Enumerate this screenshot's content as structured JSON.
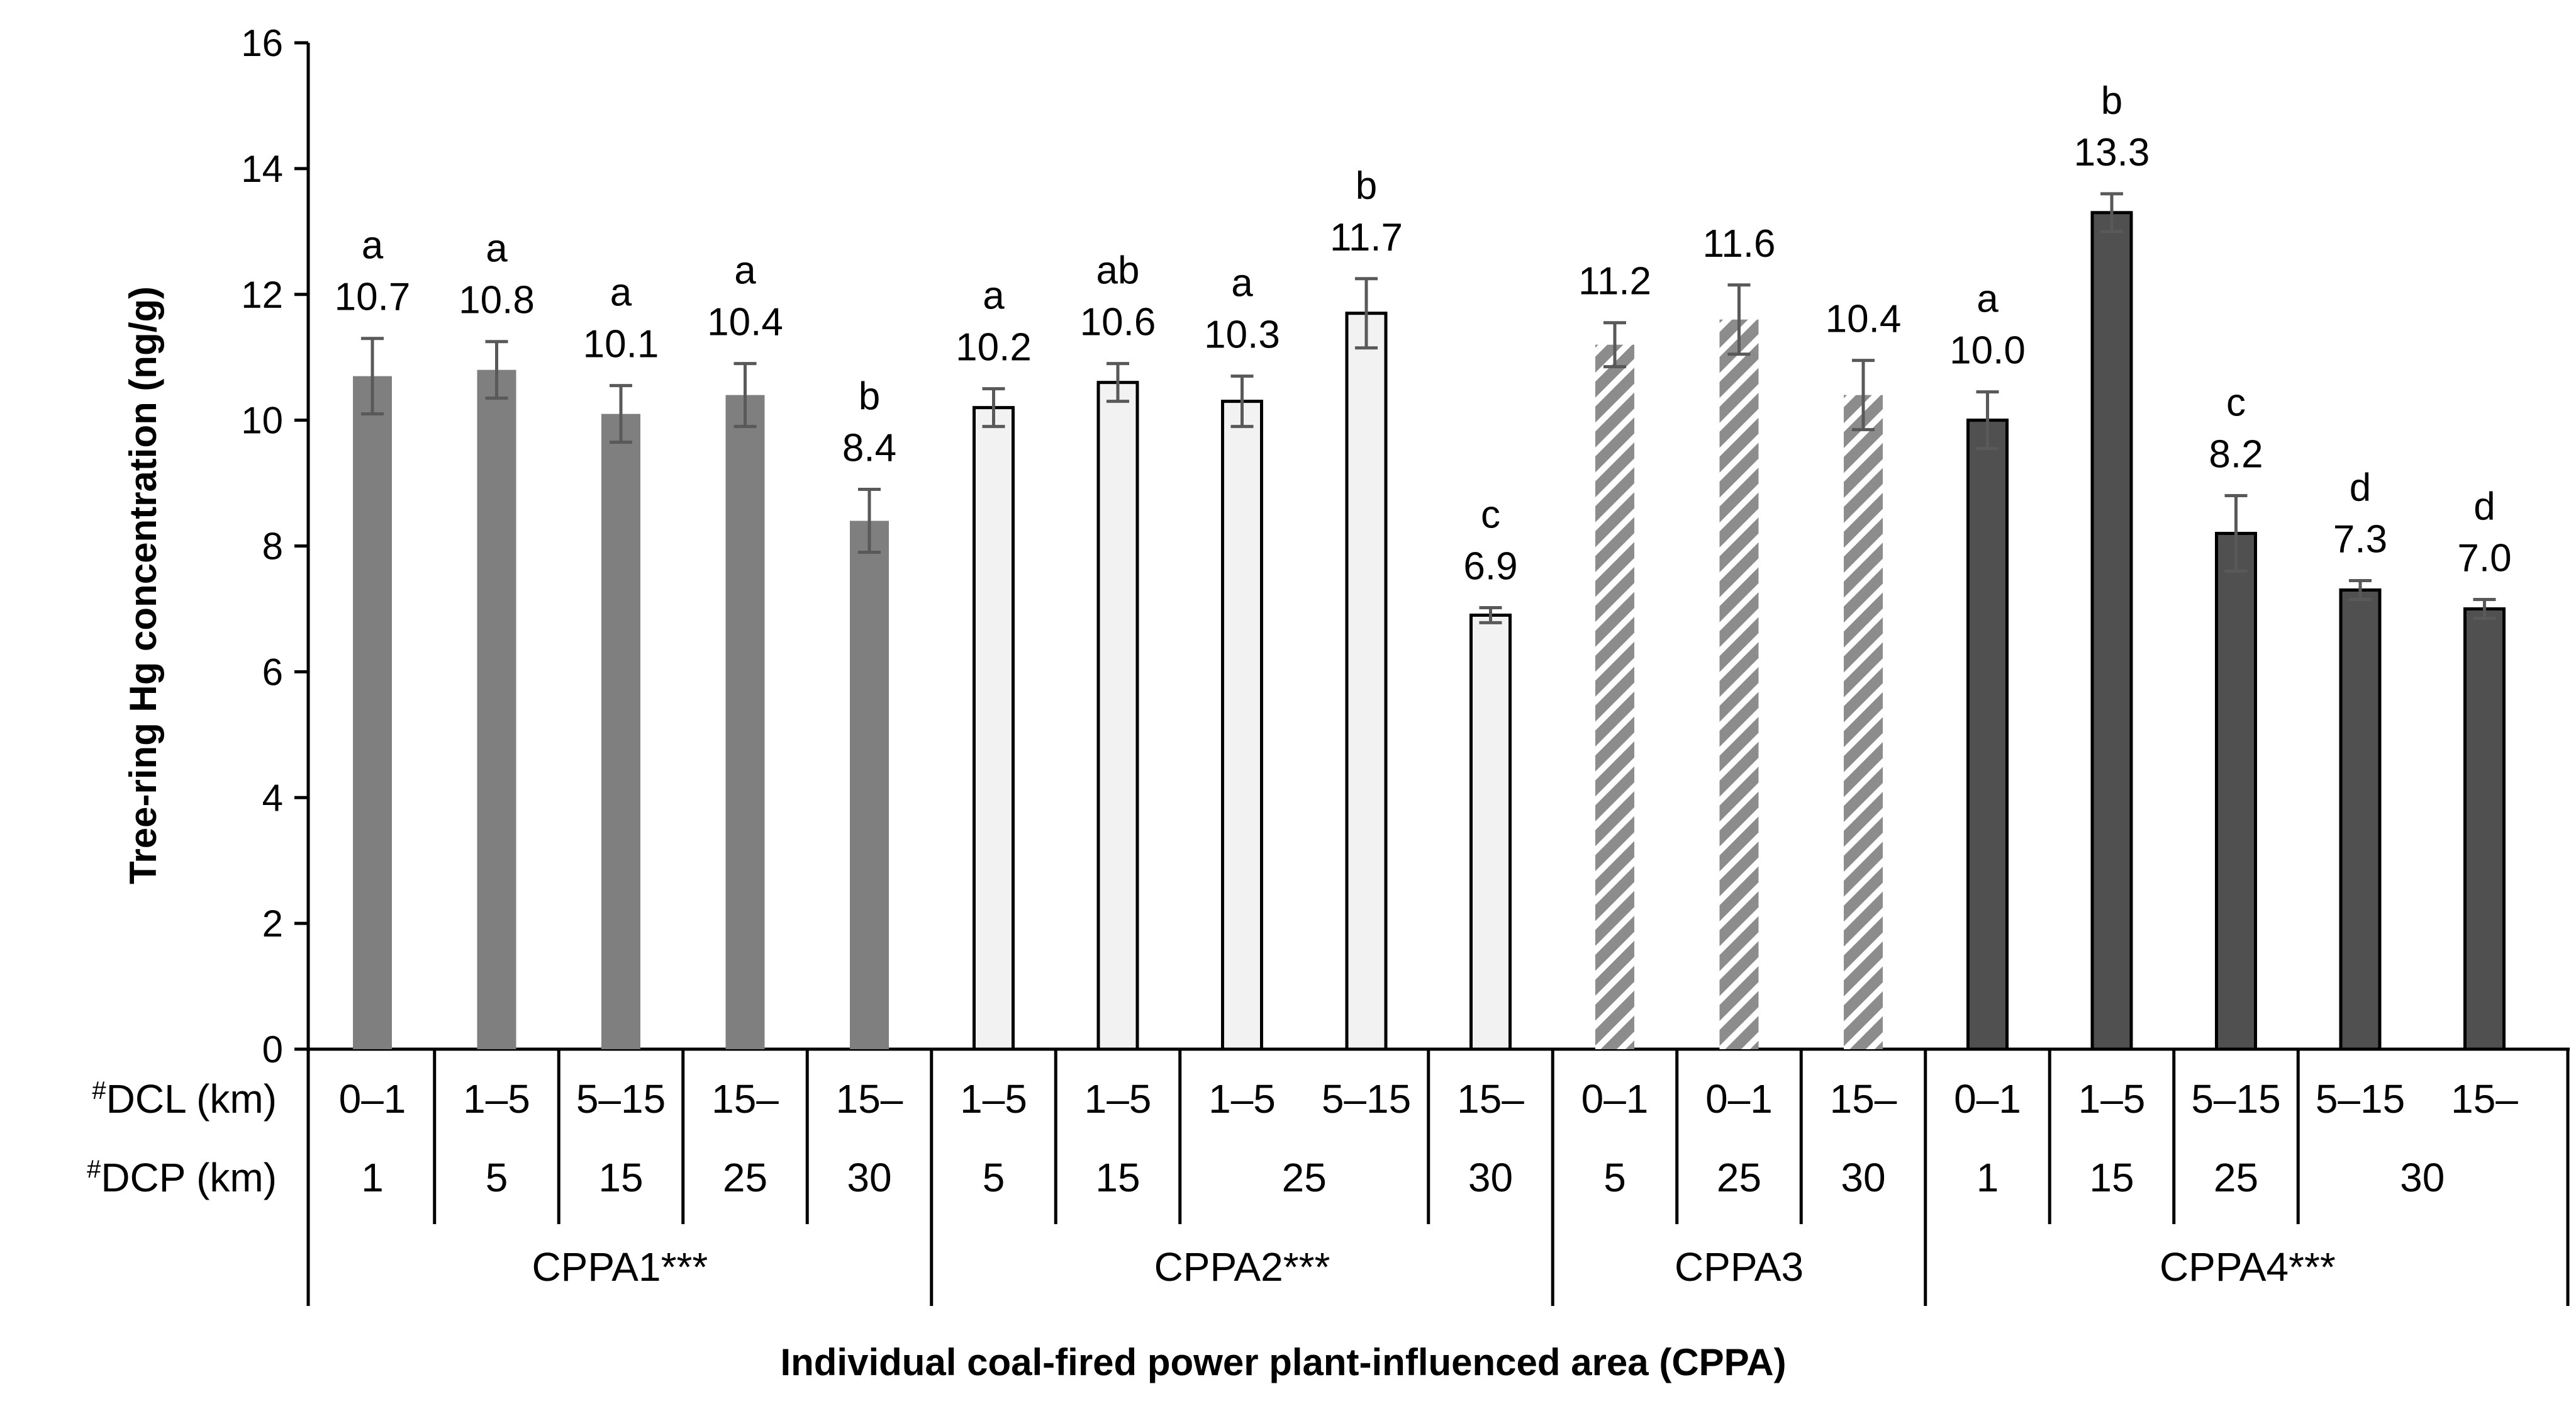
{
  "chart_data": {
    "type": "bar",
    "ylabel": "Tree-ring Hg concentration (ng/g)",
    "xlabel": "Individual coal-fired power plant-influenced area (CPPA)",
    "ylim": [
      0,
      16
    ],
    "yticks": [
      "0",
      "2",
      "4",
      "6",
      "8",
      "10",
      "12",
      "14",
      "16"
    ],
    "row_labels": {
      "dcl": "DCL (km)",
      "dcp": "DCP (km)",
      "mark": "#"
    },
    "groups": [
      {
        "name": "CPPA1***",
        "style": "gray"
      },
      {
        "name": "CPPA2***",
        "style": "light"
      },
      {
        "name": "CPPA3",
        "style": "hatched"
      },
      {
        "name": "CPPA4***",
        "style": "dark"
      }
    ],
    "bars": [
      {
        "group": 0,
        "dcl": "0–1",
        "value": 10.7,
        "label": "10.7",
        "err": 0.6,
        "letter": "a"
      },
      {
        "group": 0,
        "dcl": "1–5",
        "value": 10.8,
        "label": "10.8",
        "err": 0.45,
        "letter": "a"
      },
      {
        "group": 0,
        "dcl": "5–15",
        "value": 10.1,
        "label": "10.1",
        "err": 0.45,
        "letter": "a"
      },
      {
        "group": 0,
        "dcl": "15–",
        "value": 10.4,
        "label": "10.4",
        "err": 0.5,
        "letter": "a"
      },
      {
        "group": 0,
        "dcl": "15–",
        "value": 8.4,
        "label": "8.4",
        "err": 0.5,
        "letter": "b"
      },
      {
        "group": 1,
        "dcl": "1–5",
        "value": 10.2,
        "label": "10.2",
        "err": 0.3,
        "letter": "a"
      },
      {
        "group": 1,
        "dcl": "1–5",
        "value": 10.6,
        "label": "10.6",
        "err": 0.3,
        "letter": "ab"
      },
      {
        "group": 1,
        "dcl": "1–5",
        "value": 10.3,
        "label": "10.3",
        "err": 0.4,
        "letter": "a"
      },
      {
        "group": 1,
        "dcl": "5–15",
        "value": 11.7,
        "label": "11.7",
        "err": 0.55,
        "letter": "b"
      },
      {
        "group": 1,
        "dcl": "15–",
        "value": 6.9,
        "label": "6.9",
        "err": 0.12,
        "letter": "c"
      },
      {
        "group": 2,
        "dcl": "0–1",
        "value": 11.2,
        "label": "11.2",
        "err": 0.35,
        "letter": ""
      },
      {
        "group": 2,
        "dcl": "0–1",
        "value": 11.6,
        "label": "11.6",
        "err": 0.55,
        "letter": ""
      },
      {
        "group": 2,
        "dcl": "15–",
        "value": 10.4,
        "label": "10.4",
        "err": 0.55,
        "letter": ""
      },
      {
        "group": 3,
        "dcl": "0–1",
        "value": 10.0,
        "label": "10.0",
        "err": 0.45,
        "letter": "a"
      },
      {
        "group": 3,
        "dcl": "1–5",
        "value": 13.3,
        "label": "13.3",
        "err": 0.3,
        "letter": "b"
      },
      {
        "group": 3,
        "dcl": "5–15",
        "value": 8.2,
        "label": "8.2",
        "err": 0.6,
        "letter": "c"
      },
      {
        "group": 3,
        "dcl": "5–15",
        "value": 7.3,
        "label": "7.3",
        "err": 0.15,
        "letter": "d"
      },
      {
        "group": 3,
        "dcl": "15–",
        "value": 7.0,
        "label": "7.0",
        "err": 0.15,
        "letter": "d"
      }
    ],
    "dcp_cells": [
      {
        "label": "1",
        "span": 1
      },
      {
        "label": "5",
        "span": 1
      },
      {
        "label": "15",
        "span": 1
      },
      {
        "label": "25",
        "span": 1
      },
      {
        "label": "30",
        "span": 1
      },
      {
        "label": "5",
        "span": 1
      },
      {
        "label": "15",
        "span": 1
      },
      {
        "label": "25",
        "span": 2
      },
      {
        "label": "30",
        "span": 1
      },
      {
        "label": "5",
        "span": 1
      },
      {
        "label": "25",
        "span": 1
      },
      {
        "label": "30",
        "span": 1
      },
      {
        "label": "1",
        "span": 1
      },
      {
        "label": "15",
        "span": 1
      },
      {
        "label": "25",
        "span": 1
      },
      {
        "label": "30",
        "span": 2
      }
    ],
    "colors": {
      "gray": "#7f7f7f",
      "light": "#f2f2f2",
      "dark": "#505050",
      "hatch_fill": "#8c8c8c",
      "axis": "#000000",
      "error_bar": "#595959"
    }
  }
}
